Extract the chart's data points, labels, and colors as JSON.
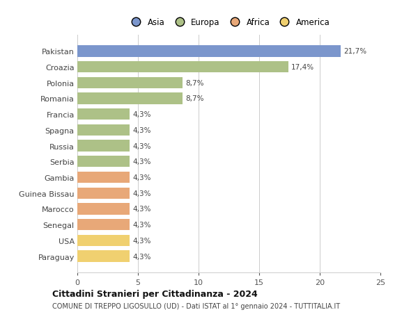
{
  "countries": [
    "Pakistan",
    "Croazia",
    "Polonia",
    "Romania",
    "Francia",
    "Spagna",
    "Russia",
    "Serbia",
    "Gambia",
    "Guinea Bissau",
    "Marocco",
    "Senegal",
    "USA",
    "Paraguay"
  ],
  "values": [
    21.7,
    17.4,
    8.7,
    8.7,
    4.3,
    4.3,
    4.3,
    4.3,
    4.3,
    4.3,
    4.3,
    4.3,
    4.3,
    4.3
  ],
  "labels": [
    "21,7%",
    "17,4%",
    "8,7%",
    "8,7%",
    "4,3%",
    "4,3%",
    "4,3%",
    "4,3%",
    "4,3%",
    "4,3%",
    "4,3%",
    "4,3%",
    "4,3%",
    "4,3%"
  ],
  "continents": [
    "Asia",
    "Europa",
    "Europa",
    "Europa",
    "Europa",
    "Europa",
    "Europa",
    "Europa",
    "Africa",
    "Africa",
    "Africa",
    "Africa",
    "America",
    "America"
  ],
  "continent_colors": {
    "Asia": "#7b96cc",
    "Europa": "#adc187",
    "Africa": "#e8a878",
    "America": "#f0d070"
  },
  "legend_entries": [
    "Asia",
    "Europa",
    "Africa",
    "America"
  ],
  "legend_colors": [
    "#7b96cc",
    "#adc187",
    "#e8a878",
    "#f0d070"
  ],
  "xlim": [
    0,
    25
  ],
  "xticks": [
    0,
    5,
    10,
    15,
    20,
    25
  ],
  "title": "Cittadini Stranieri per Cittadinanza - 2024",
  "subtitle": "COMUNE DI TREPPO LIGOSULLO (UD) - Dati ISTAT al 1° gennaio 2024 - TUTTITALIA.IT",
  "background_color": "#ffffff",
  "grid_color": "#cccccc"
}
